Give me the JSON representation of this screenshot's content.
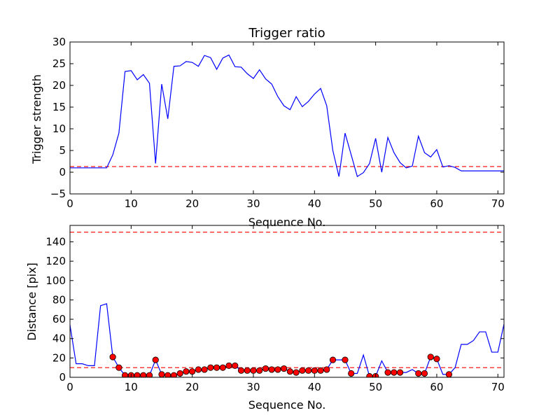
{
  "chart_data": [
    {
      "type": "line",
      "title": "Trigger ratio",
      "xlabel": "Sequence No.",
      "ylabel": "Trigger strength",
      "xlim": [
        0,
        71
      ],
      "ylim": [
        -5,
        30
      ],
      "xticks": [
        0,
        10,
        20,
        30,
        40,
        50,
        60,
        70
      ],
      "yticks": [
        -5,
        0,
        5,
        10,
        15,
        20,
        25,
        30
      ],
      "grid": false,
      "colors": {
        "line": "#0000ff",
        "threshold": "#ff0000"
      },
      "threshold": 1.3,
      "series": [
        {
          "values": [
            1.0,
            1.0,
            1.0,
            1.0,
            1.0,
            1.0,
            1.0,
            4.0,
            9.0,
            23.2,
            23.4,
            21.3,
            22.5,
            20.5,
            2.0,
            20.3,
            12.3,
            24.4,
            24.5,
            25.5,
            25.3,
            24.4,
            26.9,
            26.4,
            23.7,
            26.3,
            27.0,
            24.3,
            24.2,
            22.7,
            21.6,
            23.6,
            21.5,
            20.3,
            17.4,
            15.3,
            14.4,
            17.4,
            15.1,
            16.3,
            18.0,
            19.3,
            15.3,
            5.0,
            -1.0,
            9.0,
            4.0,
            -1.0,
            -0.1,
            2.0,
            7.8,
            0.0,
            8.0,
            4.5,
            2.2,
            1.0,
            1.4,
            8.3,
            4.5,
            3.5,
            5.2,
            1.2,
            1.5,
            1.1,
            0.3,
            0.3,
            0.3,
            0.3,
            0.3,
            0.3,
            0.3,
            0.3
          ]
        }
      ]
    },
    {
      "type": "line",
      "title": "",
      "xlabel": "Sequence No.",
      "ylabel": "Distance [pix]",
      "xlim": [
        0,
        71
      ],
      "ylim": [
        0,
        157
      ],
      "xticks": [
        0,
        10,
        20,
        30,
        40,
        50,
        60,
        70
      ],
      "yticks": [
        0,
        20,
        40,
        60,
        80,
        100,
        120,
        140
      ],
      "grid": false,
      "colors": {
        "line": "#0000ff",
        "threshold": "#ff0000",
        "marker": "#ff0000"
      },
      "thresholds": [
        150,
        10
      ],
      "series": [
        {
          "values": [
            54,
            14,
            14,
            12,
            12,
            74,
            76,
            21,
            10,
            2,
            2,
            2,
            2,
            2,
            18,
            3,
            2,
            2,
            4,
            6,
            6,
            8,
            8,
            10,
            10,
            10,
            12,
            12,
            7,
            7,
            7,
            7,
            9,
            8,
            8,
            9,
            6,
            5,
            7,
            7,
            7,
            7,
            8,
            18,
            18,
            18,
            4,
            4,
            23,
            1,
            1,
            17,
            5,
            5,
            5,
            5,
            8,
            4,
            4,
            21,
            19,
            3,
            3,
            10,
            34,
            34,
            38,
            47,
            47,
            26,
            26,
            55
          ]
        },
        {
          "name": "",
          "marker": "circle",
          "x": [
            7,
            8,
            9,
            10,
            11,
            12,
            13,
            14,
            15,
            16,
            17,
            18,
            19,
            20,
            21,
            22,
            23,
            24,
            25,
            26,
            27,
            28,
            29,
            30,
            31,
            32,
            33,
            34,
            35,
            36,
            37,
            38,
            39,
            40,
            41,
            42,
            43,
            45,
            46,
            49,
            50,
            52,
            53,
            54,
            57,
            58,
            59,
            60,
            62
          ],
          "y": [
            21,
            10,
            2,
            2,
            2,
            2,
            2,
            18,
            3,
            2,
            2,
            4,
            6,
            6,
            8,
            8,
            10,
            10,
            10,
            12,
            12,
            7,
            7,
            7,
            7,
            9,
            8,
            8,
            9,
            6,
            5,
            7,
            7,
            7,
            7,
            8,
            18,
            18,
            4,
            1,
            1,
            5,
            5,
            5,
            4,
            4,
            21,
            19,
            3
          ]
        }
      ]
    }
  ]
}
